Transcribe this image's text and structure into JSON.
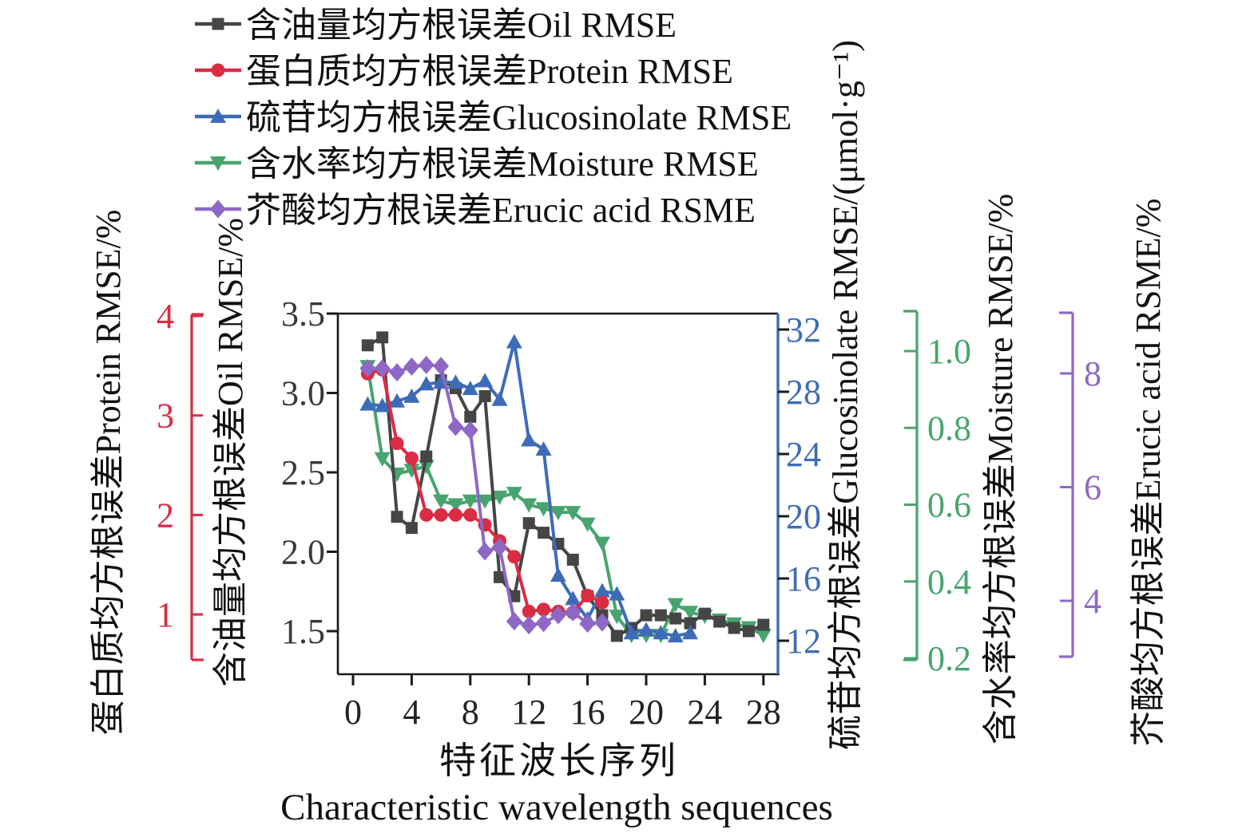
{
  "chart_data": {
    "type": "line",
    "title": "",
    "xlabel_cn": "特征波长序列",
    "xlabel_en": "Characteristic wavelength sequences",
    "x_ticks": [
      "0",
      "4",
      "8",
      "12",
      "16",
      "20",
      "24",
      "28"
    ],
    "x_tick_values": [
      0,
      4,
      8,
      12,
      16,
      20,
      24,
      28
    ],
    "x_range": [
      0,
      28
    ],
    "grid": "off",
    "legend_position": "top-left",
    "legend": [
      {
        "series": "oil",
        "label": "含油量均方根误差Oil RMSE"
      },
      {
        "series": "protein",
        "label": "蛋白质均方根误差Protein RMSE"
      },
      {
        "series": "glucosinolate",
        "label": "硫苷均方根误差Glucosinolate RMSE"
      },
      {
        "series": "moisture",
        "label": "含水率均方根误差Moisture RMSE"
      },
      {
        "series": "erucic",
        "label": "芥酸均方根误差Erucic acid RSME"
      }
    ],
    "axes": {
      "oil": {
        "title": "含油量均方根误差Oil RMSE/%",
        "color": "#454545",
        "tick_labels": [
          "3.5",
          "3.0",
          "2.5",
          "2.0",
          "1.5"
        ],
        "tick_values": [
          3.5,
          3.0,
          2.5,
          2.0,
          1.5
        ],
        "range": [
          3.5,
          1.5
        ]
      },
      "protein": {
        "title": "蛋白质均方根误差Protein RMSE/%",
        "color": "#da2c43",
        "tick_labels": [
          "4",
          "3",
          "2",
          "1"
        ],
        "tick_values": [
          4,
          3,
          2,
          1
        ],
        "range": [
          4,
          1
        ]
      },
      "glucosinolate": {
        "title": "硫苷均方根误差Glucosinolate RMSE/(μmol·g⁻¹)",
        "color": "#3e6bb7",
        "tick_labels": [
          "32",
          "28",
          "24",
          "20",
          "16",
          "12"
        ],
        "tick_values": [
          32,
          28,
          24,
          20,
          16,
          12
        ],
        "range": [
          32,
          12
        ]
      },
      "moisture": {
        "title": "含水率均方根误差Moisture RMSE/%",
        "color": "#47a46e",
        "tick_labels": [
          "1.0",
          "0.8",
          "0.6",
          "0.4",
          "0.2"
        ],
        "tick_values": [
          1.0,
          0.8,
          0.6,
          0.4,
          0.2
        ],
        "range": [
          1.0,
          0.2
        ]
      },
      "erucic": {
        "title": "芥酸均方根误差Erucic acid RSME/%",
        "color": "#8e68c4",
        "tick_labels": [
          "8",
          "6",
          "4"
        ],
        "tick_values": [
          8,
          6,
          4
        ],
        "range": [
          8,
          4
        ]
      }
    },
    "series": [
      {
        "id": "oil",
        "name": "Oil RMSE",
        "axis": "oil",
        "color": "#454545",
        "marker": "square",
        "x": [
          1,
          2,
          3,
          4,
          5,
          6,
          7,
          8,
          9,
          10,
          11,
          12,
          13,
          14,
          15,
          16,
          17,
          18,
          19,
          20,
          21,
          22,
          23,
          24,
          25,
          26,
          27,
          28
        ],
        "values": [
          3.3,
          3.35,
          2.22,
          2.15,
          2.6,
          3.08,
          3.03,
          2.85,
          2.98,
          1.84,
          1.72,
          2.18,
          2.12,
          2.05,
          1.95,
          1.72,
          1.6,
          1.47,
          1.52,
          1.6,
          1.6,
          1.58,
          1.55,
          1.61,
          1.56,
          1.52,
          1.5,
          1.54
        ]
      },
      {
        "id": "protein",
        "name": "Protein RMSE",
        "axis": "protein",
        "color": "#da2c43",
        "marker": "circle",
        "x": [
          1,
          2,
          3,
          4,
          5,
          6,
          7,
          8,
          9,
          10,
          11,
          12,
          13,
          14,
          15,
          16,
          17
        ],
        "values": [
          3.42,
          3.46,
          2.72,
          2.57,
          2.0,
          2.0,
          2.0,
          2.0,
          1.9,
          1.74,
          1.58,
          1.03,
          1.05,
          1.03,
          1.02,
          1.19,
          1.12
        ]
      },
      {
        "id": "glucosinolate",
        "name": "Glucosinolate RMSE",
        "axis": "glucosinolate",
        "color": "#3e6bb7",
        "marker": "triangle-up",
        "x": [
          1,
          2,
          3,
          4,
          5,
          6,
          7,
          8,
          9,
          10,
          11,
          12,
          13,
          14,
          15,
          16,
          17,
          18,
          19,
          20,
          21,
          22,
          23
        ],
        "values": [
          27.2,
          27.1,
          27.4,
          27.7,
          28.5,
          28.6,
          28.6,
          28.2,
          28.7,
          27.5,
          31.2,
          24.9,
          24.3,
          16.2,
          14.7,
          13.4,
          15.2,
          15.0,
          12.5,
          12.7,
          12.5,
          12.3,
          12.5
        ]
      },
      {
        "id": "moisture",
        "name": "Moisture RMSE",
        "axis": "moisture",
        "color": "#47a46e",
        "marker": "triangle-down",
        "x": [
          1,
          2,
          3,
          4,
          5,
          6,
          7,
          8,
          9,
          10,
          11,
          12,
          13,
          14,
          15,
          16,
          17,
          18,
          19,
          20,
          21,
          22,
          23,
          24,
          25,
          26,
          27,
          28
        ],
        "values": [
          0.96,
          0.72,
          0.68,
          0.69,
          0.7,
          0.61,
          0.6,
          0.61,
          0.61,
          0.62,
          0.63,
          0.6,
          0.59,
          0.58,
          0.58,
          0.55,
          0.5,
          0.31,
          0.26,
          0.26,
          0.26,
          0.34,
          0.32,
          0.31,
          0.3,
          0.29,
          0.28,
          0.26
        ]
      },
      {
        "id": "erucic",
        "name": "Erucic acid RSME",
        "axis": "erucic",
        "color": "#8e68c4",
        "marker": "diamond",
        "x": [
          1,
          2,
          3,
          4,
          5,
          6,
          7,
          8,
          9,
          10,
          11,
          12,
          13,
          14,
          15,
          16,
          17
        ],
        "values": [
          8.09,
          8.09,
          8.02,
          8.12,
          8.15,
          8.13,
          7.06,
          7.0,
          4.87,
          4.94,
          3.64,
          3.57,
          3.61,
          3.75,
          3.8,
          3.6,
          3.62
        ]
      }
    ]
  }
}
